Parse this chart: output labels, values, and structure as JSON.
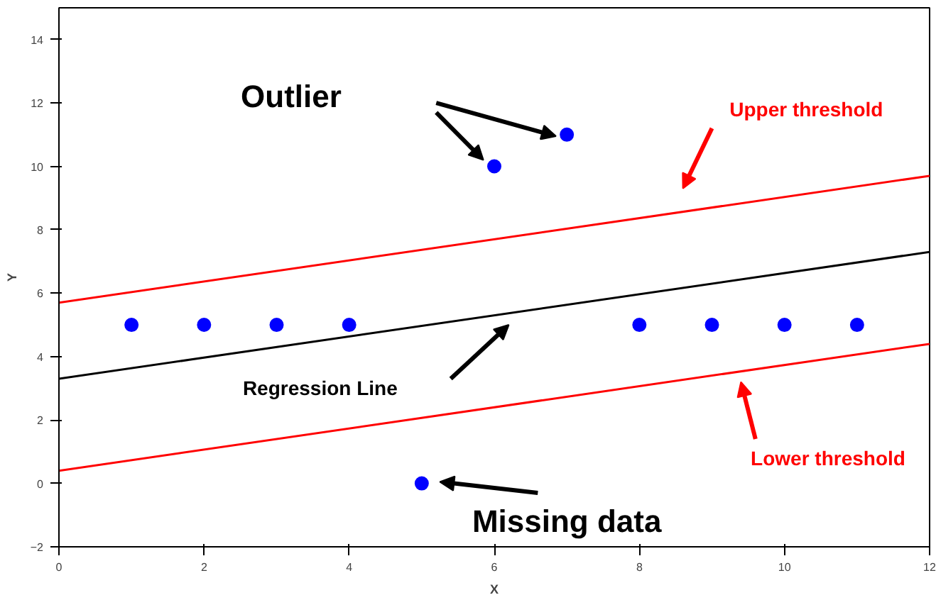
{
  "chart_data": {
    "type": "scatter",
    "xlabel": "X",
    "ylabel": "Y",
    "xlim": [
      0,
      12
    ],
    "ylim": [
      -2,
      15
    ],
    "xticks": [
      0,
      2,
      4,
      6,
      8,
      10,
      12
    ],
    "yticks": [
      -2,
      0,
      2,
      4,
      6,
      8,
      10,
      12,
      14
    ],
    "grid": false,
    "series": [
      {
        "color": "#0000ff",
        "marker": "circle",
        "x": [
          1,
          2,
          3,
          4,
          5,
          6,
          7,
          8,
          9,
          10,
          11
        ],
        "values": [
          5,
          5,
          5,
          5,
          0,
          10,
          11,
          5,
          5,
          5,
          5
        ]
      },
      {
        "type": "line",
        "color": "#000000",
        "x": [
          0,
          12
        ],
        "values": [
          3.3,
          7.3
        ]
      },
      {
        "type": "line",
        "color": "#ff0000",
        "x": [
          0,
          12
        ],
        "values": [
          5.7,
          9.7
        ]
      },
      {
        "type": "line",
        "color": "#ff0000",
        "x": [
          0,
          12
        ],
        "values": [
          0.4,
          4.4
        ]
      }
    ],
    "annotations": [
      "Outlier",
      "Upper threshold",
      "Regression Line",
      "Lower threshold",
      "Missing data"
    ]
  }
}
